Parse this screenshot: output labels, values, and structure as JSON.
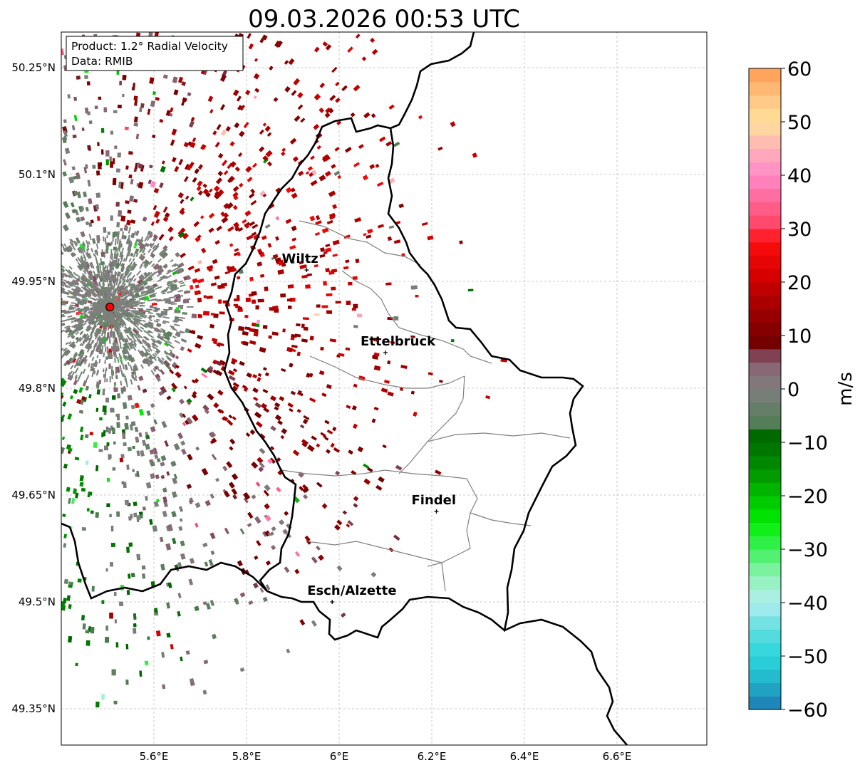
{
  "title": "09.03.2026 00:53 UTC",
  "info_box": {
    "product_line": "Product: 1.2° Radial Velocity",
    "data_line": "Data: RMIB"
  },
  "colorbar": {
    "label": "m/s",
    "vmin": -60,
    "vmax": 60,
    "ticks": [
      "60",
      "50",
      "40",
      "30",
      "20",
      "10",
      "0",
      "−10",
      "−20",
      "−30",
      "−40",
      "−50",
      "−60"
    ],
    "tick_values": [
      60,
      50,
      40,
      30,
      20,
      10,
      0,
      -10,
      -20,
      -30,
      -40,
      -50,
      -60
    ],
    "stops": [
      {
        "v": -60,
        "c": "#1f77b4"
      },
      {
        "v": -55,
        "c": "#20b2c8"
      },
      {
        "v": -50,
        "c": "#2ad6dc"
      },
      {
        "v": -45,
        "c": "#5fdede"
      },
      {
        "v": -40,
        "c": "#b4eef0"
      },
      {
        "v": -35,
        "c": "#8ef2b4"
      },
      {
        "v": -30,
        "c": "#3ef05a"
      },
      {
        "v": -25,
        "c": "#00ee00"
      },
      {
        "v": -20,
        "c": "#00c000"
      },
      {
        "v": -15,
        "c": "#009000"
      },
      {
        "v": -8,
        "c": "#006400"
      },
      {
        "v": -7,
        "c": "#4f7e52"
      },
      {
        "v": 0,
        "c": "#7f7f7f"
      },
      {
        "v": 5,
        "c": "#8a6070"
      },
      {
        "v": 7,
        "c": "#7a3040"
      },
      {
        "v": 8,
        "c": "#700000"
      },
      {
        "v": 15,
        "c": "#a00000"
      },
      {
        "v": 22,
        "c": "#dc0000"
      },
      {
        "v": 28,
        "c": "#ff1010"
      },
      {
        "v": 30,
        "c": "#ff4060"
      },
      {
        "v": 40,
        "c": "#ff8ac8"
      },
      {
        "v": 45,
        "c": "#ffb0b8"
      },
      {
        "v": 50,
        "c": "#ffe29a"
      },
      {
        "v": 55,
        "c": "#ffc080"
      },
      {
        "v": 60,
        "c": "#ff9a50"
      }
    ]
  },
  "map": {
    "lon_range": [
      5.4,
      6.8
    ],
    "lat_range": [
      49.3,
      50.3
    ],
    "lon_ticks": [
      {
        "v": 5.6,
        "label": "5.6°E"
      },
      {
        "v": 5.8,
        "label": "5.8°E"
      },
      {
        "v": 6.0,
        "label": "6°E"
      },
      {
        "v": 6.2,
        "label": "6.2°E"
      },
      {
        "v": 6.4,
        "label": "6.4°E"
      },
      {
        "v": 6.6,
        "label": "6.6°E"
      }
    ],
    "lat_ticks": [
      {
        "v": 50.25,
        "label": "50.25°N"
      },
      {
        "v": 50.1,
        "label": "50.1°N"
      },
      {
        "v": 49.95,
        "label": "49.95°N"
      },
      {
        "v": 49.8,
        "label": "49.8°N"
      },
      {
        "v": 49.65,
        "label": "49.65°N"
      },
      {
        "v": 49.5,
        "label": "49.5°N"
      },
      {
        "v": 49.35,
        "label": "49.35°N"
      }
    ],
    "radar_site": {
      "lon": 5.505,
      "lat": 49.914,
      "color": "#ff0000"
    },
    "cities": [
      {
        "name": "Wiltz",
        "lon": 5.93,
        "lat": 49.966
      },
      {
        "name": "Ettelbruck",
        "lon": 6.1,
        "lat": 49.85
      },
      {
        "name": "Findel",
        "lon": 6.21,
        "lat": 49.627
      },
      {
        "name": "Esch/Alzette",
        "lon": 5.985,
        "lat": 49.5
      }
    ]
  }
}
